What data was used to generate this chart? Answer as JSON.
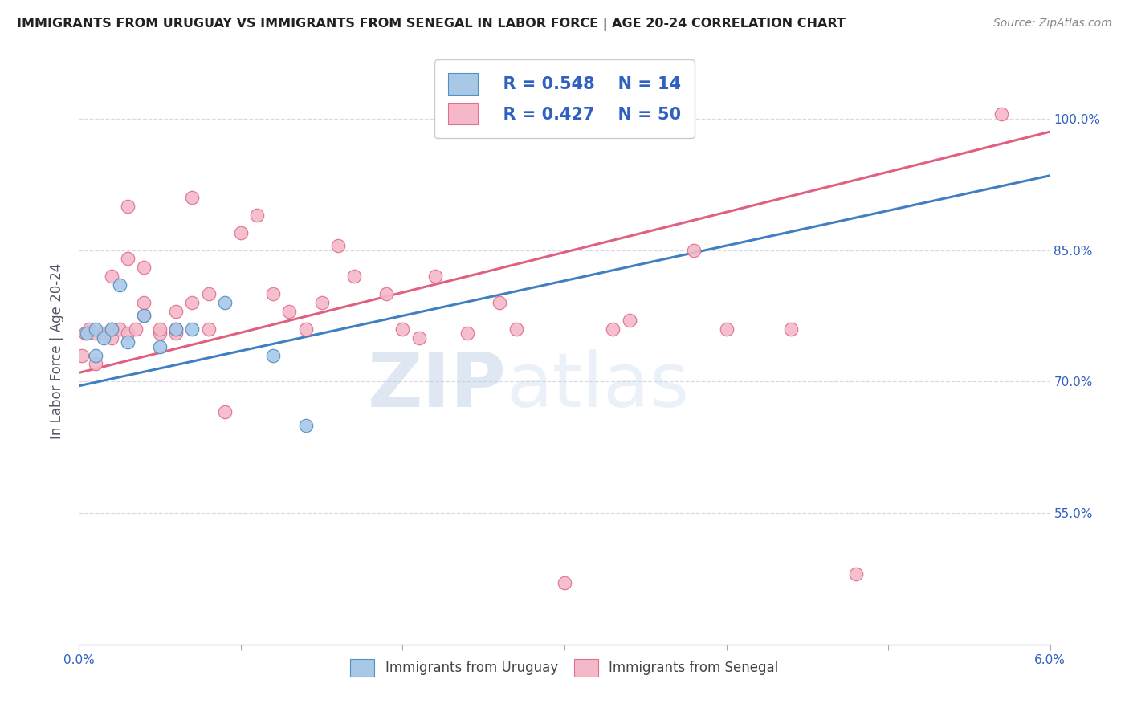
{
  "title": "IMMIGRANTS FROM URUGUAY VS IMMIGRANTS FROM SENEGAL IN LABOR FORCE | AGE 20-24 CORRELATION CHART",
  "source": "Source: ZipAtlas.com",
  "ylabel": "In Labor Force | Age 20-24",
  "x_min": 0.0,
  "x_max": 0.06,
  "x_ticks": [
    0.0,
    0.01,
    0.02,
    0.03,
    0.04,
    0.05,
    0.06
  ],
  "x_tick_labels": [
    "0.0%",
    "",
    "",
    "",
    "",
    "",
    "6.0%"
  ],
  "y_min": 0.4,
  "y_max": 1.07,
  "y_ticks": [
    0.55,
    0.7,
    0.85,
    1.0
  ],
  "y_tick_labels": [
    "55.0%",
    "70.0%",
    "85.0%",
    "100.0%"
  ],
  "watermark_zip": "ZIP",
  "watermark_atlas": "atlas",
  "legend_R1": "R = 0.548",
  "legend_N1": "N = 14",
  "legend_R2": "R = 0.427",
  "legend_N2": "N = 50",
  "color_uruguay_fill": "#a8c8e8",
  "color_uruguay_edge": "#5590c0",
  "color_senegal_fill": "#f5b8c8",
  "color_senegal_edge": "#e07090",
  "color_line_uruguay": "#4080c0",
  "color_line_senegal": "#e06080",
  "color_text_blue": "#3060c0",
  "color_axis_blue": "#3060c0",
  "color_grid": "#d8d8e8",
  "uruguay_x": [
    0.0005,
    0.001,
    0.001,
    0.0015,
    0.002,
    0.0025,
    0.003,
    0.004,
    0.005,
    0.006,
    0.007,
    0.009,
    0.012,
    0.014
  ],
  "uruguay_y": [
    0.755,
    0.76,
    0.73,
    0.75,
    0.76,
    0.81,
    0.745,
    0.775,
    0.74,
    0.76,
    0.76,
    0.79,
    0.73,
    0.65
  ],
  "senegal_x": [
    0.0002,
    0.0004,
    0.0006,
    0.001,
    0.001,
    0.0015,
    0.002,
    0.002,
    0.002,
    0.0025,
    0.003,
    0.003,
    0.003,
    0.0035,
    0.004,
    0.004,
    0.004,
    0.005,
    0.005,
    0.006,
    0.006,
    0.006,
    0.007,
    0.007,
    0.008,
    0.008,
    0.009,
    0.01,
    0.011,
    0.012,
    0.013,
    0.014,
    0.015,
    0.016,
    0.017,
    0.019,
    0.02,
    0.021,
    0.022,
    0.024,
    0.026,
    0.027,
    0.03,
    0.033,
    0.034,
    0.038,
    0.04,
    0.044,
    0.048,
    0.057
  ],
  "senegal_y": [
    0.73,
    0.755,
    0.76,
    0.72,
    0.755,
    0.755,
    0.75,
    0.76,
    0.82,
    0.76,
    0.755,
    0.84,
    0.9,
    0.76,
    0.775,
    0.79,
    0.83,
    0.755,
    0.76,
    0.78,
    0.755,
    0.76,
    0.79,
    0.91,
    0.8,
    0.76,
    0.665,
    0.87,
    0.89,
    0.8,
    0.78,
    0.76,
    0.79,
    0.855,
    0.82,
    0.8,
    0.76,
    0.75,
    0.82,
    0.755,
    0.79,
    0.76,
    0.47,
    0.76,
    0.77,
    0.85,
    0.76,
    0.76,
    0.48,
    1.005
  ],
  "line_uruguay_x0": 0.0,
  "line_uruguay_y0": 0.695,
  "line_uruguay_x1": 0.06,
  "line_uruguay_y1": 0.935,
  "line_senegal_x0": 0.0,
  "line_senegal_y0": 0.71,
  "line_senegal_x1": 0.06,
  "line_senegal_y1": 0.985
}
